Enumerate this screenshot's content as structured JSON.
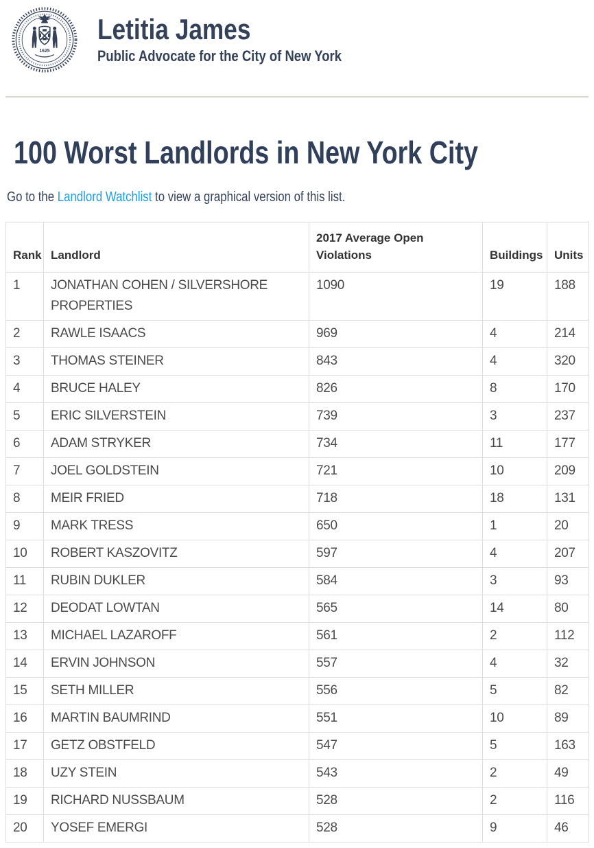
{
  "header": {
    "name": "Letitia James",
    "subtitle": "Public Advocate for the City of New York",
    "seal_icon": "nyc-city-seal-icon",
    "seal_year": "1625"
  },
  "page": {
    "title": "100 Worst Landlords in New York City",
    "intro_prefix": "Go to the ",
    "intro_link": "Landlord Watchlist",
    "intro_suffix": " to view a graphical version of this list."
  },
  "table": {
    "columns": [
      "Rank",
      "Landlord",
      "2017 Average Open Violations",
      "Buildings",
      "Units"
    ],
    "rows": [
      [
        "1",
        "JONATHAN COHEN / SILVERSHORE PROPERTIES",
        "1090",
        "19",
        "188"
      ],
      [
        "2",
        "RAWLE ISAACS",
        "969",
        "4",
        "214"
      ],
      [
        "3",
        "THOMAS STEINER",
        "843",
        "4",
        "320"
      ],
      [
        "4",
        "BRUCE HALEY",
        "826",
        "8",
        "170"
      ],
      [
        "5",
        "ERIC SILVERSTEIN",
        "739",
        "3",
        "237"
      ],
      [
        "6",
        "ADAM STRYKER",
        "734",
        "11",
        "177"
      ],
      [
        "7",
        "JOEL GOLDSTEIN",
        "721",
        "10",
        "209"
      ],
      [
        "8",
        "MEIR FRIED",
        "718",
        "18",
        "131"
      ],
      [
        "9",
        "MARK TRESS",
        "650",
        "1",
        "20"
      ],
      [
        "10",
        "ROBERT KASZOVITZ",
        "597",
        "4",
        "207"
      ],
      [
        "11",
        "RUBIN DUKLER",
        "584",
        "3",
        "93"
      ],
      [
        "12",
        "DEODAT LOWTAN",
        "565",
        "14",
        "80"
      ],
      [
        "13",
        "MICHAEL LAZAROFF",
        "561",
        "2",
        "112"
      ],
      [
        "14",
        "ERVIN JOHNSON",
        "557",
        "4",
        "32"
      ],
      [
        "15",
        "SETH MILLER",
        "556",
        "5",
        "82"
      ],
      [
        "16",
        "MARTIN BAUMRIND",
        "551",
        "10",
        "89"
      ],
      [
        "17",
        "GETZ OBSTFELD",
        "547",
        "5",
        "163"
      ],
      [
        "18",
        "UZY STEIN",
        "543",
        "2",
        "49"
      ],
      [
        "19",
        "RICHARD NUSSBAUM",
        "528",
        "2",
        "116"
      ],
      [
        "20",
        "YOSEF EMERGI",
        "528",
        "9",
        "46"
      ]
    ]
  },
  "colors": {
    "navy": "#344259",
    "link_blue": "#1f9ce0",
    "table_border": "#dcdcdc",
    "divider_rule": "#d8d8cc",
    "header_cell_text": "#333333",
    "data_cell_text": "#4a4a4a"
  }
}
